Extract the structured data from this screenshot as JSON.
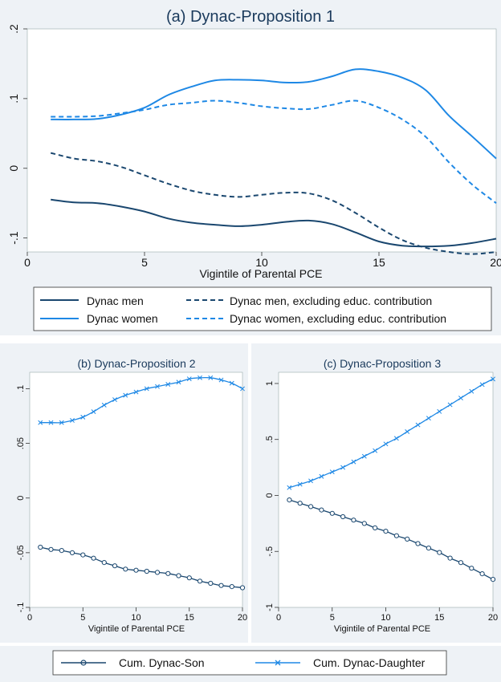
{
  "colors": {
    "dark": "#1a476f",
    "light": "#1e88e5",
    "panel_bg": "#eef2f6",
    "plot_bg": "#ffffff",
    "title": "#1a3a5c"
  },
  "chart_data": [
    {
      "id": "a",
      "type": "line",
      "title": "(a) Dynac-Proposition 1",
      "xlabel": "Vigintile of Parental PCE",
      "ylabel": "",
      "xlim": [
        0,
        20
      ],
      "ylim": [
        -0.12,
        0.2
      ],
      "x_ticks": [
        0,
        5,
        10,
        15,
        20
      ],
      "x_tick_labels": [
        "0",
        "5",
        "10",
        "15",
        "20"
      ],
      "y_ticks": [
        0.2,
        0.1,
        0,
        -0.1
      ],
      "y_tick_labels": [
        ".2",
        ".1",
        "0",
        "-.1"
      ],
      "grid": false,
      "legend_position": "bottom",
      "x": [
        1,
        2,
        3,
        4,
        5,
        6,
        7,
        8,
        9,
        10,
        11,
        12,
        13,
        14,
        15,
        16,
        17,
        18,
        19,
        20
      ],
      "series": [
        {
          "name": "Dynac men",
          "style": "solid",
          "color": "dark",
          "values": [
            -0.045,
            -0.049,
            -0.05,
            -0.055,
            -0.062,
            -0.072,
            -0.078,
            -0.081,
            -0.083,
            -0.081,
            -0.077,
            -0.075,
            -0.08,
            -0.092,
            -0.105,
            -0.111,
            -0.112,
            -0.111,
            -0.107,
            -0.101
          ]
        },
        {
          "name": "Dynac men, excluding educ. contribution",
          "style": "dashed",
          "color": "dark",
          "values": [
            0.022,
            0.014,
            0.01,
            0.002,
            -0.01,
            -0.022,
            -0.032,
            -0.038,
            -0.041,
            -0.038,
            -0.035,
            -0.036,
            -0.046,
            -0.064,
            -0.085,
            -0.103,
            -0.114,
            -0.12,
            -0.123,
            -0.12
          ]
        },
        {
          "name": "Dynac women",
          "style": "solid",
          "color": "light",
          "values": [
            0.07,
            0.07,
            0.071,
            0.077,
            0.087,
            0.105,
            0.117,
            0.126,
            0.127,
            0.126,
            0.123,
            0.124,
            0.132,
            0.142,
            0.139,
            0.13,
            0.112,
            0.075,
            0.045,
            0.014
          ]
        },
        {
          "name": "Dynac women, excluding educ. contribution",
          "style": "dashed",
          "color": "light",
          "values": [
            0.074,
            0.074,
            0.075,
            0.079,
            0.084,
            0.091,
            0.094,
            0.097,
            0.094,
            0.089,
            0.086,
            0.085,
            0.091,
            0.097,
            0.087,
            0.07,
            0.045,
            0.008,
            -0.024,
            -0.05
          ]
        }
      ]
    },
    {
      "id": "b",
      "type": "line",
      "title": "(b) Dynac-Proposition 2",
      "xlabel": "Vigintile of Parental PCE",
      "ylabel": "",
      "xlim": [
        0,
        20
      ],
      "ylim": [
        -0.1,
        0.115
      ],
      "x_ticks": [
        0,
        5,
        10,
        15,
        20
      ],
      "x_tick_labels": [
        "0",
        "5",
        "10",
        "15",
        "20"
      ],
      "y_ticks": [
        0.1,
        0.05,
        0,
        -0.05,
        -0.1
      ],
      "y_tick_labels": [
        ".1",
        ".05",
        "0",
        "-.05",
        "-.1"
      ],
      "grid": false,
      "x": [
        1,
        2,
        3,
        4,
        5,
        6,
        7,
        8,
        9,
        10,
        11,
        12,
        13,
        14,
        15,
        16,
        17,
        18,
        19,
        20
      ],
      "series": [
        {
          "name": "Cum. Dynac-Son",
          "marker": "circle",
          "color": "dark",
          "values": [
            -0.045,
            -0.047,
            -0.048,
            -0.05,
            -0.052,
            -0.055,
            -0.059,
            -0.062,
            -0.065,
            -0.066,
            -0.067,
            -0.068,
            -0.069,
            -0.071,
            -0.073,
            -0.076,
            -0.078,
            -0.08,
            -0.081,
            -0.082
          ]
        },
        {
          "name": "Cum. Dynac-Daughter",
          "marker": "x",
          "color": "light",
          "values": [
            0.069,
            0.069,
            0.069,
            0.071,
            0.074,
            0.079,
            0.085,
            0.09,
            0.094,
            0.097,
            0.1,
            0.102,
            0.104,
            0.106,
            0.109,
            0.11,
            0.11,
            0.108,
            0.105,
            0.1
          ]
        }
      ]
    },
    {
      "id": "c",
      "type": "line",
      "title": "(c) Dynac-Proposition 3",
      "xlabel": "Vigintile of Parental PCE",
      "ylabel": "",
      "xlim": [
        0,
        20
      ],
      "ylim": [
        -1,
        1.1
      ],
      "x_ticks": [
        0,
        5,
        10,
        15,
        20
      ],
      "x_tick_labels": [
        "0",
        "5",
        "10",
        "15",
        "20"
      ],
      "y_ticks": [
        1,
        0.5,
        0,
        -0.5,
        -1
      ],
      "y_tick_labels": [
        "1",
        ".5",
        "0",
        "-.5",
        "-1"
      ],
      "grid": false,
      "x": [
        1,
        2,
        3,
        4,
        5,
        6,
        7,
        8,
        9,
        10,
        11,
        12,
        13,
        14,
        15,
        16,
        17,
        18,
        19,
        20
      ],
      "series": [
        {
          "name": "Cum. Dynac-Son",
          "marker": "circle",
          "color": "dark",
          "values": [
            -0.04,
            -0.07,
            -0.1,
            -0.13,
            -0.16,
            -0.19,
            -0.22,
            -0.25,
            -0.29,
            -0.32,
            -0.36,
            -0.39,
            -0.43,
            -0.47,
            -0.51,
            -0.56,
            -0.6,
            -0.65,
            -0.7,
            -0.75
          ]
        },
        {
          "name": "Cum. Dynac-Daughter",
          "marker": "x",
          "color": "light",
          "values": [
            0.07,
            0.1,
            0.13,
            0.17,
            0.21,
            0.25,
            0.3,
            0.35,
            0.4,
            0.46,
            0.51,
            0.57,
            0.63,
            0.69,
            0.75,
            0.81,
            0.87,
            0.93,
            0.99,
            1.04
          ]
        }
      ]
    }
  ],
  "legend_bottom": {
    "entries": [
      {
        "label": "Cum. Dynac-Son",
        "marker": "circle",
        "color": "dark"
      },
      {
        "label": "Cum. Dynac-Daughter",
        "marker": "x",
        "color": "light"
      }
    ]
  }
}
